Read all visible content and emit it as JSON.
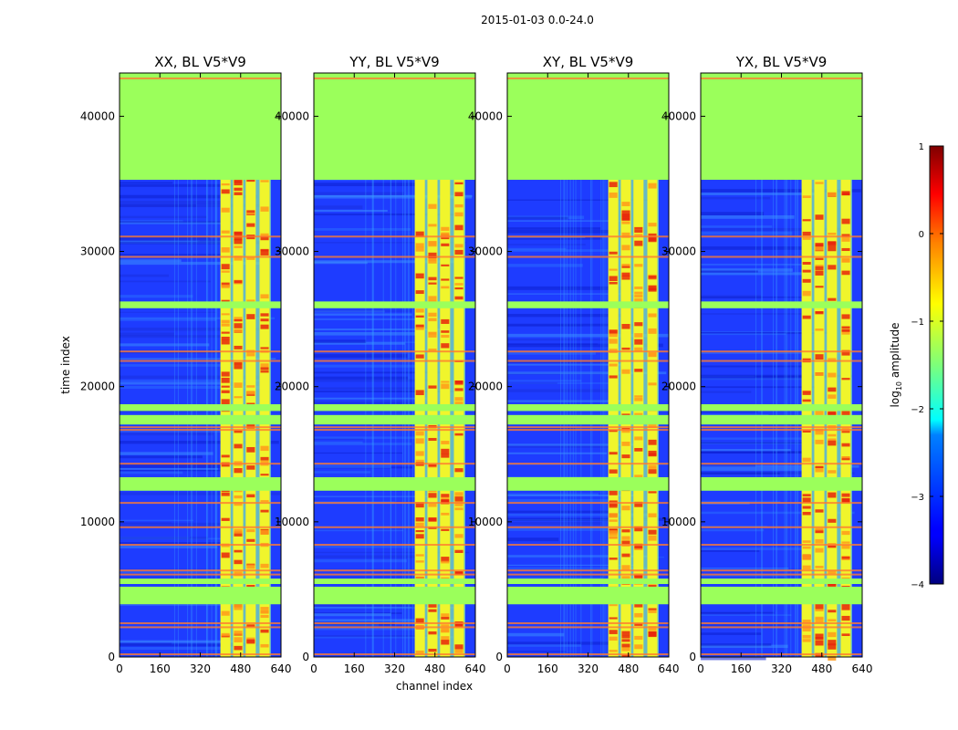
{
  "figure": {
    "suptitle": "2015-01-03 0.0-24.0"
  },
  "chart_data": [
    {
      "type": "heatmap",
      "title": "XX, BL V5*V9",
      "polarization": "XX",
      "baseline": "V5*V9",
      "xlabel": "",
      "ylabel": "time index",
      "xlim": [
        0,
        640
      ],
      "ylim": [
        0,
        43200
      ],
      "xticks": [
        0,
        160,
        320,
        480,
        640
      ],
      "yticks": [
        0,
        10000,
        20000,
        30000,
        40000
      ]
    },
    {
      "type": "heatmap",
      "title": "YY, BL V5*V9",
      "polarization": "YY",
      "baseline": "V5*V9",
      "xlabel": "channel index",
      "ylabel": "",
      "xlim": [
        0,
        640
      ],
      "ylim": [
        0,
        43200
      ],
      "xticks": [
        0,
        160,
        320,
        480,
        640
      ],
      "yticks": [
        0,
        10000,
        20000,
        30000,
        40000
      ]
    },
    {
      "type": "heatmap",
      "title": "XY, BL V5*V9",
      "polarization": "XY",
      "baseline": "V5*V9",
      "xlabel": "",
      "ylabel": "",
      "xlim": [
        0,
        640
      ],
      "ylim": [
        0,
        43200
      ],
      "xticks": [
        0,
        160,
        320,
        480,
        640
      ],
      "yticks": [
        0,
        10000,
        20000,
        30000,
        40000
      ]
    },
    {
      "type": "heatmap",
      "title": "YX, BL V5*V9",
      "polarization": "YX",
      "baseline": "V5*V9",
      "xlabel": "",
      "ylabel": "",
      "xlim": [
        0,
        640
      ],
      "ylim": [
        0,
        43200
      ],
      "xticks": [
        0,
        160,
        320,
        480,
        640
      ],
      "yticks": [
        0,
        10000,
        20000,
        30000,
        40000
      ]
    }
  ],
  "colorbar": {
    "label_prefix": "log",
    "label_sub": "10",
    "label_suffix": " amplitude",
    "min": -4,
    "max": 1,
    "ticks": [
      -4,
      -3,
      -2,
      -1,
      0,
      1
    ],
    "tick_labels": [
      "−4",
      "−3",
      "−2",
      "−1",
      "0",
      "1"
    ],
    "colormap": "jet"
  },
  "structure": {
    "flagged_time_ranges": [
      [
        35300,
        43200
      ],
      [
        25800,
        26300
      ],
      [
        18200,
        18700
      ],
      [
        17200,
        17900
      ],
      [
        12300,
        13300
      ],
      [
        5400,
        5800
      ],
      [
        3900,
        5200
      ]
    ],
    "highlight_rows": [
      42800,
      31100,
      29600,
      22600,
      21900,
      17000,
      16800,
      14300,
      11400,
      9600,
      8300,
      6400,
      6100,
      2500,
      2200,
      200
    ],
    "band_channel_ranges": [
      [
        400,
        440
      ],
      [
        450,
        490
      ],
      [
        500,
        540
      ],
      [
        555,
        595
      ]
    ],
    "band_start_channel": 400,
    "band_end_channel": 600,
    "colors": {
      "flagged": "#9bff5b",
      "background_low": "#1e3cff",
      "band": "#f0f52c",
      "band_hot": "#e8240c"
    }
  }
}
